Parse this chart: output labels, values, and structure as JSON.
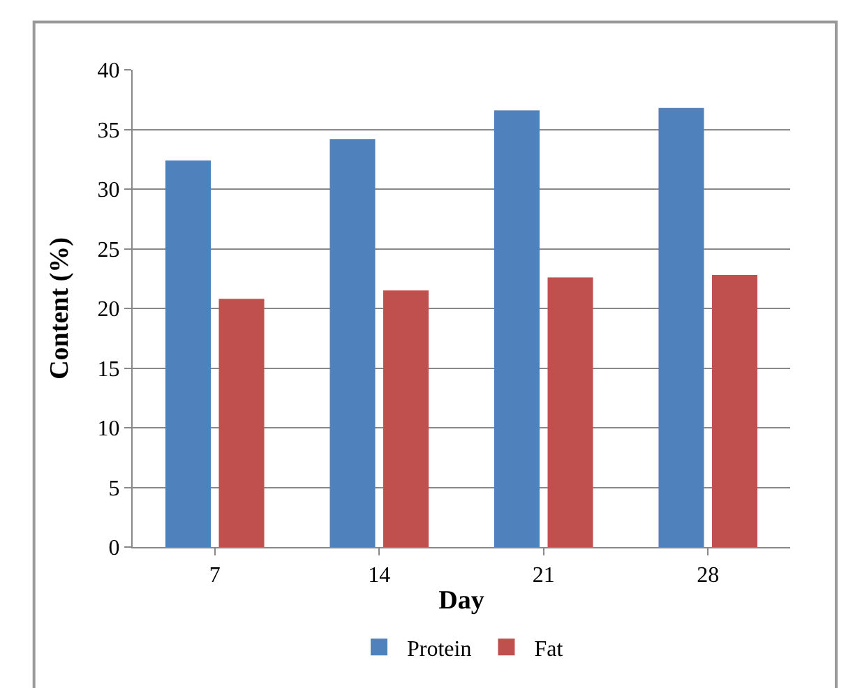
{
  "chart_data": {
    "type": "bar",
    "xlabel": "Day",
    "ylabel": "Content (%)",
    "categories": [
      "7",
      "14",
      "21",
      "28"
    ],
    "series": [
      {
        "name": "Protein",
        "color": "#4f81bd",
        "values": [
          32.4,
          34.2,
          36.6,
          36.8
        ]
      },
      {
        "name": "Fat",
        "color": "#c0504d",
        "values": [
          20.8,
          21.5,
          22.6,
          22.8
        ]
      }
    ],
    "ylim": [
      0,
      40
    ],
    "yticks": [
      0,
      5,
      10,
      15,
      20,
      25,
      30,
      35,
      40
    ],
    "grid": "y",
    "legend": "bottom"
  }
}
